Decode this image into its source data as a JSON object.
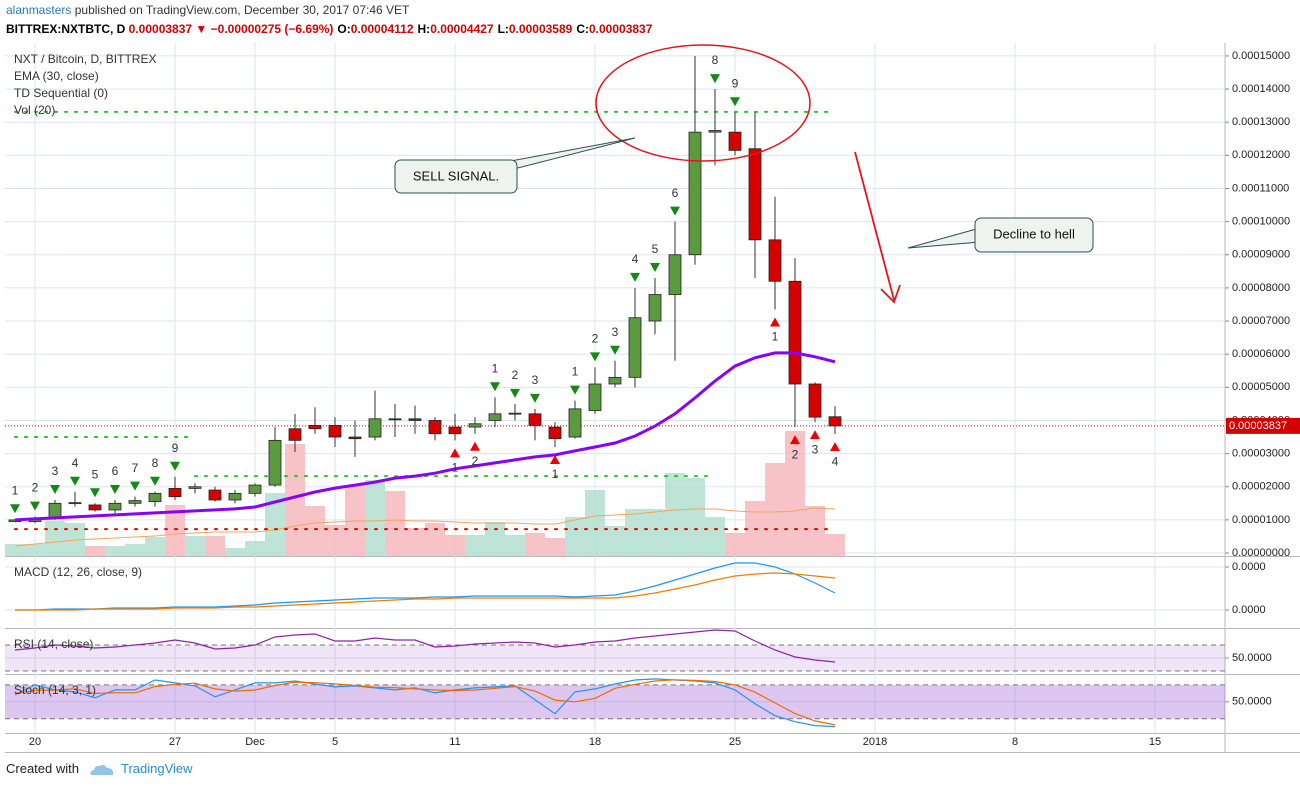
{
  "header": {
    "author": "alanmasters",
    "published": "published on TradingView.com, December 30, 2017 07:46 VET"
  },
  "quote": {
    "symbol": "BITTREX:NXTBTC, D",
    "last": "0.00003837",
    "arrow": "▼",
    "change": "−0.00000275 (−6.69%)",
    "ohlc": [
      {
        "label": "O:",
        "value": "0.00004112"
      },
      {
        "label": "H:",
        "value": "0.00004427"
      },
      {
        "label": "L:",
        "value": "0.00003589"
      },
      {
        "label": "C:",
        "value": "0.00003837"
      }
    ]
  },
  "annotations": [
    "SELL SIGNAL.",
    "Decline to hell"
  ],
  "footer": {
    "created": "Created with",
    "brand": "TradingView"
  },
  "chart_data": [
    {
      "type": "candlestick",
      "title": "NXT / Bitcoin, D, BITTREX",
      "x": [
        "2017-11-19",
        "2017-11-20",
        "2017-11-21",
        "2017-11-22",
        "2017-11-23",
        "2017-11-24",
        "2017-11-25",
        "2017-11-26",
        "2017-11-27",
        "2017-11-28",
        "2017-11-29",
        "2017-11-30",
        "2017-12-01",
        "2017-12-02",
        "2017-12-03",
        "2017-12-04",
        "2017-12-05",
        "2017-12-06",
        "2017-12-07",
        "2017-12-08",
        "2017-12-09",
        "2017-12-10",
        "2017-12-11",
        "2017-12-12",
        "2017-12-13",
        "2017-12-14",
        "2017-12-15",
        "2017-12-16",
        "2017-12-17",
        "2017-12-18",
        "2017-12-19",
        "2017-12-20",
        "2017-12-21",
        "2017-12-22",
        "2017-12-23",
        "2017-12-24",
        "2017-12-25",
        "2017-12-26",
        "2017-12-27",
        "2017-12-28",
        "2017-12-29",
        "2017-12-30"
      ],
      "open": [
        9.5e-06,
        9.5e-06,
        1.05e-05,
        1.5e-05,
        1.45e-05,
        1.3e-05,
        1.5e-05,
        1.55e-05,
        1.95e-05,
        1.95e-05,
        1.9e-05,
        1.6e-05,
        1.8e-05,
        2.05e-05,
        3.75e-05,
        3.85e-05,
        3.85e-05,
        3.5e-05,
        3.5e-05,
        4.05e-05,
        4.05e-05,
        4e-05,
        3.8e-05,
        3.8e-05,
        4e-05,
        4.2e-05,
        4.2e-05,
        3.8e-05,
        3.5e-05,
        4.3e-05,
        5.1e-05,
        5.3e-05,
        7e-05,
        7.8e-05,
        9e-05,
        0.000127,
        0.000127,
        0.000122,
        9.45e-05,
        8.2e-05,
        5.1e-05,
        4.112e-05
      ],
      "high": [
        1.02e-05,
        1.1e-05,
        1.6e-05,
        1.85e-05,
        1.5e-05,
        1.6e-05,
        1.7e-05,
        1.85e-05,
        2.3e-05,
        2.1e-05,
        2e-05,
        1.9e-05,
        2.1e-05,
        3.8e-05,
        4.2e-05,
        4.4e-05,
        4.1e-05,
        4e-05,
        4.9e-05,
        4.5e-05,
        4.45e-05,
        4.1e-05,
        4.2e-05,
        4.1e-05,
        4.7e-05,
        4.5e-05,
        4.35e-05,
        3.95e-05,
        4.6e-05,
        5.6e-05,
        5.8e-05,
        8e-05,
        8.3e-05,
        0.0001,
        0.00015,
        0.00014,
        0.000133,
        0.000133,
        0.0001075,
        8.9e-05,
        5.15e-05,
        4.427e-05
      ],
      "low": [
        9.3e-06,
        9e-06,
        1e-05,
        1.4e-05,
        1.25e-05,
        1.2e-05,
        1.4e-05,
        1.4e-05,
        1.6e-05,
        1.8e-05,
        1.55e-05,
        1.5e-05,
        1.7e-05,
        2e-05,
        3.05e-05,
        3.6e-05,
        3.2e-05,
        2.9e-05,
        3.4e-05,
        3.5e-05,
        3.6e-05,
        3.4e-05,
        3.4e-05,
        3.6e-05,
        3.8e-05,
        4e-05,
        3.4e-05,
        3.2e-05,
        3.45e-05,
        4.2e-05,
        5e-05,
        5e-05,
        6.6e-05,
        5.8e-05,
        8.7e-05,
        0.000117,
        0.00012,
        8.3e-05,
        7.35e-05,
        3.8e-05,
        3.95e-05,
        3.589e-05
      ],
      "close": [
        1e-05,
        1.05e-05,
        1.5e-05,
        1.52e-05,
        1.3e-05,
        1.5e-05,
        1.58e-05,
        1.8e-05,
        1.7e-05,
        2e-05,
        1.6e-05,
        1.8e-05,
        2.05e-05,
        3.4e-05,
        3.4e-05,
        3.75e-05,
        3.5e-05,
        3.45e-05,
        4.05e-05,
        4.02e-05,
        4e-05,
        3.6e-05,
        3.6e-05,
        3.9e-05,
        4.2e-05,
        4.22e-05,
        3.85e-05,
        3.45e-05,
        4.35e-05,
        5.1e-05,
        5.3e-05,
        7.1e-05,
        7.8e-05,
        9e-05,
        0.000127,
        0.0001275,
        0.0001215,
        9.45e-05,
        8.2e-05,
        5.1e-05,
        4.1e-05,
        3.837e-05
      ],
      "up_color": "#5b9a3f",
      "down_color": "#d50000",
      "wick_color": "#333333",
      "ema": {
        "name": "EMA (30, close)",
        "color": "#8a00ff",
        "values": [
          1e-05,
          1.03e-05,
          1.06e-05,
          1.09e-05,
          1.12e-05,
          1.15e-05,
          1.18e-05,
          1.21e-05,
          1.24e-05,
          1.27e-05,
          1.3e-05,
          1.33e-05,
          1.39e-05,
          1.54e-05,
          1.69e-05,
          1.84e-05,
          1.96e-05,
          2.05e-05,
          2.14e-05,
          2.26e-05,
          2.32e-05,
          2.41e-05,
          2.54e-05,
          2.63e-05,
          2.72e-05,
          2.81e-05,
          2.9e-05,
          2.96e-05,
          3.08e-05,
          3.2e-05,
          3.32e-05,
          3.53e-05,
          3.83e-05,
          4.2e-05,
          4.68e-05,
          5.19e-05,
          5.64e-05,
          5.89e-05,
          6.04e-05,
          6.04e-05,
          5.92e-05,
          5.77e-05
        ]
      },
      "td": {
        "name": "TD Sequential (0)",
        "sell_color": "#138a13",
        "buy_color": "#ee0000",
        "sell": [
          "1",
          "2",
          "3",
          "4",
          "5",
          "6",
          "7",
          "8",
          "9",
          null,
          null,
          null,
          null,
          null,
          null,
          null,
          null,
          null,
          null,
          null,
          null,
          null,
          null,
          null,
          "1",
          "2",
          "3",
          null,
          "1",
          "2",
          "3",
          "4",
          "5",
          "6",
          null,
          "8",
          "9",
          null,
          null,
          null,
          null,
          null
        ],
        "buy": [
          null,
          null,
          null,
          null,
          null,
          null,
          null,
          null,
          null,
          null,
          null,
          null,
          null,
          null,
          null,
          null,
          null,
          null,
          null,
          null,
          null,
          null,
          "1",
          "2",
          null,
          null,
          null,
          "1",
          null,
          null,
          null,
          null,
          null,
          null,
          null,
          null,
          null,
          null,
          "1",
          "2",
          "3",
          "4"
        ]
      },
      "volume": {
        "name": "Vol (20)",
        "ylim": [
          0,
          513
        ],
        "up_color": "#b3dfd0",
        "down_color": "#f6b8bd",
        "ma_color": "#f7a35c",
        "values": [
          12,
          12,
          35,
          33,
          10,
          10,
          12,
          19,
          51,
          20,
          20,
          8,
          15,
          63,
          112,
          50,
          31,
          71,
          76,
          65,
          28,
          33,
          21,
          21,
          34,
          21,
          23,
          18,
          39,
          66,
          30,
          47,
          47,
          83,
          78,
          39,
          23,
          55,
          93,
          125,
          50,
          22
        ],
        "ma": [
          10,
          12,
          14,
          16,
          17,
          18,
          19,
          20,
          22,
          23,
          24,
          24,
          24,
          26,
          30,
          33,
          34,
          35,
          35,
          36,
          35,
          35,
          34,
          33,
          33,
          33,
          32,
          32,
          36,
          40,
          41,
          42,
          44,
          46,
          47,
          47,
          45,
          44,
          44,
          45,
          48,
          47
        ]
      },
      "levels": [
        {
          "value": 0.0001331,
          "color": "#22c322",
          "from": "2017-11-19",
          "to": "2017-12-30"
        },
        {
          "value": 3.5e-05,
          "color": "#22c322",
          "from": "2017-11-19",
          "to": "2017-11-28"
        },
        {
          "value": 2.32e-05,
          "color": "#22c322",
          "from": "2017-11-28",
          "to": "2017-12-24"
        },
        {
          "value": 7.2e-06,
          "color": "#e00000",
          "from": "2017-11-19",
          "to": "2017-12-30"
        }
      ],
      "xlim": [
        "2017-11-18T12:00Z",
        "2018-01-18T12:00Z"
      ],
      "xticks": [
        {
          "value": "2017-11-20",
          "label": "20"
        },
        {
          "value": "2017-11-27",
          "label": "27"
        },
        {
          "value": "2017-12-01",
          "label": "Dec"
        },
        {
          "value": "2017-12-05",
          "label": "5"
        },
        {
          "value": "2017-12-11",
          "label": "11"
        },
        {
          "value": "2017-12-18",
          "label": "18"
        },
        {
          "value": "2017-12-25",
          "label": "25"
        },
        {
          "value": "2018-01-01",
          "label": "2018"
        },
        {
          "value": "2018-01-08",
          "label": "8"
        },
        {
          "value": "2018-01-15",
          "label": "15"
        }
      ],
      "ylim": [
        -9e-07,
        0.0001539
      ],
      "yticks": [
        {
          "value": 0,
          "label": "0.00000000"
        },
        {
          "value": 1e-05,
          "label": "0.00001000"
        },
        {
          "value": 2e-05,
          "label": "0.00002000"
        },
        {
          "value": 3e-05,
          "label": "0.00003000"
        },
        {
          "value": 4e-05,
          "label": "0.00004000"
        },
        {
          "value": 5e-05,
          "label": "0.00005000"
        },
        {
          "value": 6e-05,
          "label": "0.00006000"
        },
        {
          "value": 7e-05,
          "label": "0.00007000"
        },
        {
          "value": 8e-05,
          "label": "0.00008000"
        },
        {
          "value": 9e-05,
          "label": "0.00009000"
        },
        {
          "value": 0.0001,
          "label": "0.00010000"
        },
        {
          "value": 0.00011,
          "label": "0.00011000"
        },
        {
          "value": 0.00012,
          "label": "0.00012000"
        },
        {
          "value": 0.00013,
          "label": "0.00013000"
        },
        {
          "value": 0.00014,
          "label": "0.00014000"
        },
        {
          "value": 0.00015,
          "label": "0.00015000"
        }
      ],
      "grid": true
    },
    {
      "type": "line",
      "title": "MACD (12, 26, close, 9)",
      "ylim": [
        -4.19e-06,
        1.233e-05
      ],
      "yticks": [
        {
          "value": 1e-05,
          "label": "0.0000"
        },
        {
          "value": 0,
          "label": "0.0000"
        }
      ],
      "grid": true,
      "series": [
        {
          "color": "#2196f3",
          "values": [
            0,
            0,
            2.3e-07,
            2.3e-07,
            2.3e-07,
            4.7e-07,
            4.7e-07,
            4.7e-07,
            7e-07,
            7e-07,
            7e-07,
            9.3e-07,
            1.16e-06,
            1.63e-06,
            1.86e-06,
            2.09e-06,
            2.33e-06,
            2.56e-06,
            2.79e-06,
            2.79e-06,
            2.79e-06,
            3.02e-06,
            3.02e-06,
            3.26e-06,
            3.26e-06,
            3.26e-06,
            3.26e-06,
            3.26e-06,
            3.02e-06,
            3.26e-06,
            3.49e-06,
            4.42e-06,
            5.58e-06,
            6.98e-06,
            8.37e-06,
            9.77e-06,
            1.093e-05,
            1.093e-05,
            1e-05,
            8.37e-06,
            6.28e-06,
            3.95e-06
          ]
        },
        {
          "color": "#f57c00",
          "values": [
            0,
            0,
            0,
            0,
            2.3e-07,
            2.3e-07,
            2.3e-07,
            2.3e-07,
            4.7e-07,
            4.7e-07,
            4.7e-07,
            7e-07,
            7e-07,
            9.3e-07,
            1.16e-06,
            1.4e-06,
            1.63e-06,
            1.86e-06,
            2.09e-06,
            2.33e-06,
            2.56e-06,
            2.56e-06,
            2.79e-06,
            2.79e-06,
            2.79e-06,
            2.79e-06,
            2.79e-06,
            2.79e-06,
            2.79e-06,
            2.79e-06,
            2.79e-06,
            3.26e-06,
            3.95e-06,
            4.88e-06,
            5.81e-06,
            6.98e-06,
            7.91e-06,
            8.37e-06,
            8.6e-06,
            8.37e-06,
            7.91e-06,
            7.44e-06
          ]
        }
      ]
    },
    {
      "type": "line",
      "title": "RSI (14, close)",
      "ylim": [
        25.4,
        94.6
      ],
      "band": [
        30,
        70
      ],
      "band_color": "#9c4dcc",
      "yticks": [
        {
          "value": 50,
          "label": "50.0000"
        }
      ],
      "grid": true,
      "series": [
        {
          "color": "#8e24aa",
          "values": [
            62.3,
            65.4,
            70,
            68.5,
            65.4,
            66.9,
            70,
            73.1,
            77.7,
            73.1,
            63.8,
            65.4,
            70,
            82.3,
            85.4,
            86.9,
            76.2,
            76.2,
            80.8,
            77.7,
            77.7,
            66.9,
            68.5,
            71.5,
            73.1,
            74.6,
            73.1,
            66.9,
            70,
            74.6,
            76.2,
            80.8,
            83.8,
            86.9,
            90,
            93.1,
            91.5,
            76.2,
            62.3,
            51.5,
            46.9,
            43.8
          ]
        }
      ]
    },
    {
      "type": "line",
      "title": "Stoch (14, 3, 1)",
      "ylim": [
        -5.4,
        97.6
      ],
      "band": [
        20,
        80
      ],
      "band_color": "#8e44d0",
      "yticks": [
        {
          "value": 50,
          "label": "50.0000"
        }
      ],
      "grid": true,
      "series": [
        {
          "color": "#2196f3",
          "values": [
            62.3,
            80,
            71.2,
            67.6,
            57.1,
            71.2,
            71.2,
            88.8,
            83.5,
            78.2,
            58.8,
            71.2,
            83.5,
            83.5,
            87,
            81.7,
            76.5,
            78.2,
            74.7,
            71.2,
            74.7,
            65.9,
            71.2,
            74.7,
            76.5,
            78.2,
            53.5,
            28.8,
            67.6,
            72.9,
            81.7,
            88.8,
            90.6,
            88.8,
            87,
            83.5,
            71.2,
            46.5,
            25.3,
            14.7,
            7.7,
            5.9
          ]
        },
        {
          "color": "#ef6c00",
          "values": [
            65,
            70,
            71,
            73,
            65,
            66,
            66,
            77,
            81,
            83,
            73,
            69,
            71,
            79,
            85,
            84,
            82,
            79,
            76,
            75,
            73,
            71,
            70,
            71,
            74,
            77,
            69,
            53,
            50,
            56,
            74,
            81,
            87,
            89,
            88,
            86,
            80,
            67,
            48,
            29,
            16,
            9
          ]
        }
      ]
    }
  ]
}
